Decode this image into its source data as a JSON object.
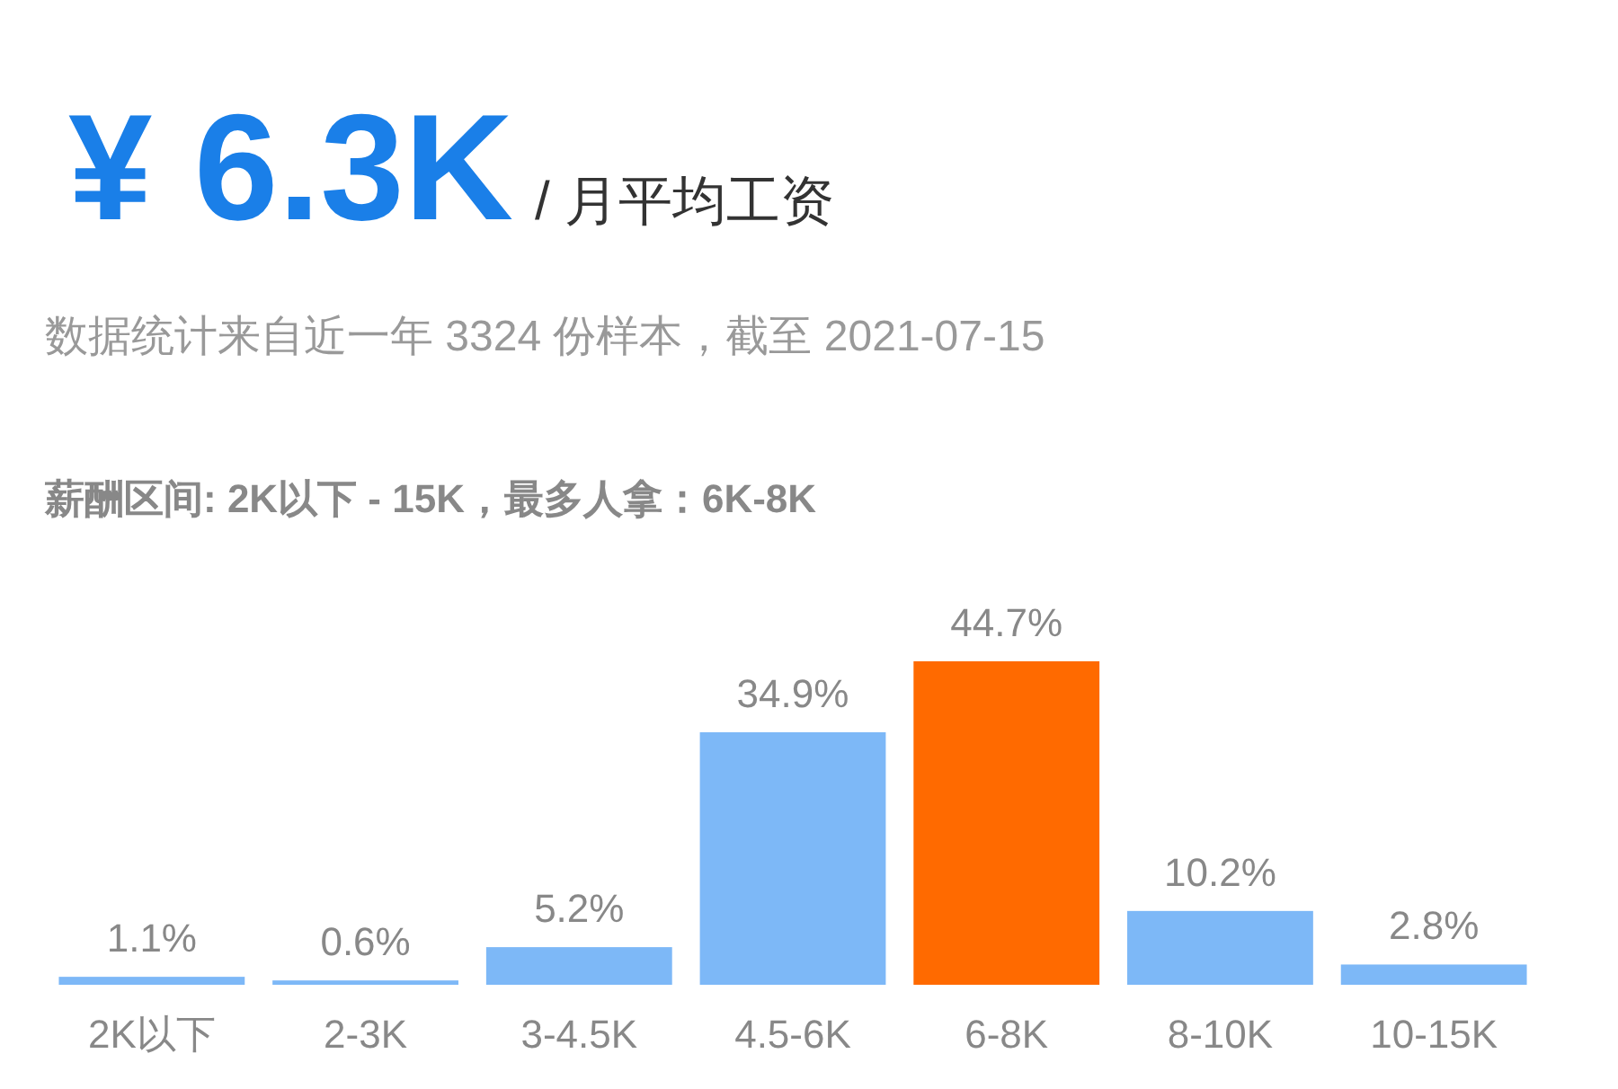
{
  "chart_data": {
    "type": "bar",
    "title": "¥ 6.3K",
    "subtitle": "/ 月平均工资",
    "annotations": [
      "数据统计来自近一年 3324 份样本，截至 2021-07-15",
      "薪酬区间: 2K以下 - 15K，最多人拿：6K-8K"
    ],
    "categories": [
      "2K以下",
      "2-3K",
      "3-4.5K",
      "4.5-6K",
      "6-8K",
      "8-10K",
      "10-15K"
    ],
    "values": [
      1.1,
      0.6,
      5.2,
      34.9,
      44.7,
      10.2,
      2.8
    ],
    "value_labels": [
      "1.1%",
      "0.6%",
      "5.2%",
      "34.9%",
      "44.7%",
      "10.2%",
      "2.8%"
    ],
    "colors": [
      "#7db8f7",
      "#7db8f7",
      "#7db8f7",
      "#7db8f7",
      "#ff6a00",
      "#7db8f7",
      "#7db8f7"
    ]
  }
}
